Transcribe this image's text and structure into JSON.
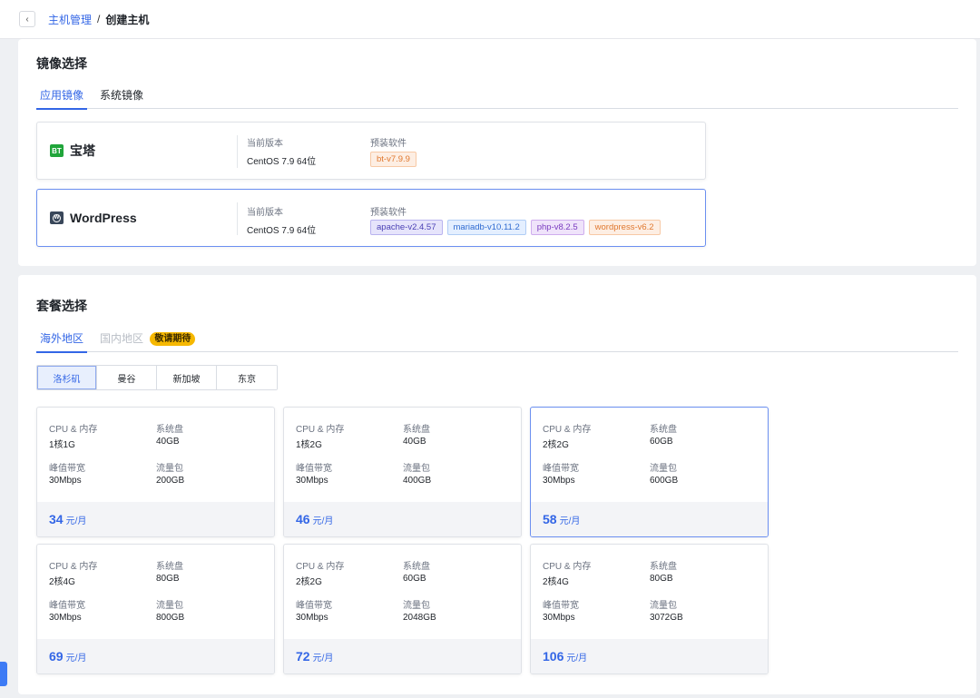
{
  "header": {
    "back_icon": "‹",
    "crumb_parent": "主机管理",
    "crumb_sep": "/",
    "crumb_current": "创建主机"
  },
  "image_section": {
    "title": "镜像选择",
    "tabs": [
      "应用镜像",
      "系统镜像"
    ],
    "label_version": "当前版本",
    "label_software": "预装软件",
    "apps": [
      {
        "name": "宝塔",
        "logo_text": "BT",
        "version": "CentOS 7.9 64位",
        "software": [
          "bt-v7.9.9"
        ]
      },
      {
        "name": "WordPress",
        "logo_text": "W",
        "version": "CentOS 7.9 64位",
        "software": [
          "apache-v2.4.57",
          "mariadb-v10.11.2",
          "php-v8.2.5",
          "wordpress-v6.2"
        ]
      }
    ]
  },
  "plan_section": {
    "title": "套餐选择",
    "tabs": [
      "海外地区",
      "国内地区"
    ],
    "soon_badge": "敬请期待",
    "regions": [
      "洛杉矶",
      "曼谷",
      "新加坡",
      "东京"
    ],
    "label_cpu": "CPU & 内存",
    "label_disk": "系统盘",
    "label_bw": "峰值带宽",
    "label_traffic": "流量包",
    "unit": "元/月",
    "plans": [
      {
        "cpu": "1核1G",
        "disk": "40GB",
        "bw": "30Mbps",
        "traffic": "200GB",
        "price": "34"
      },
      {
        "cpu": "1核2G",
        "disk": "40GB",
        "bw": "30Mbps",
        "traffic": "400GB",
        "price": "46"
      },
      {
        "cpu": "2核2G",
        "disk": "60GB",
        "bw": "30Mbps",
        "traffic": "600GB",
        "price": "58"
      },
      {
        "cpu": "2核4G",
        "disk": "80GB",
        "bw": "30Mbps",
        "traffic": "800GB",
        "price": "69"
      },
      {
        "cpu": "2核2G",
        "disk": "60GB",
        "bw": "30Mbps",
        "traffic": "2048GB",
        "price": "72"
      },
      {
        "cpu": "2核4G",
        "disk": "80GB",
        "bw": "30Mbps",
        "traffic": "3072GB",
        "price": "106"
      }
    ]
  },
  "colors": {
    "accent": "#3366e6",
    "bt_green": "#20a53a",
    "soon_yellow": "#f6b800"
  }
}
